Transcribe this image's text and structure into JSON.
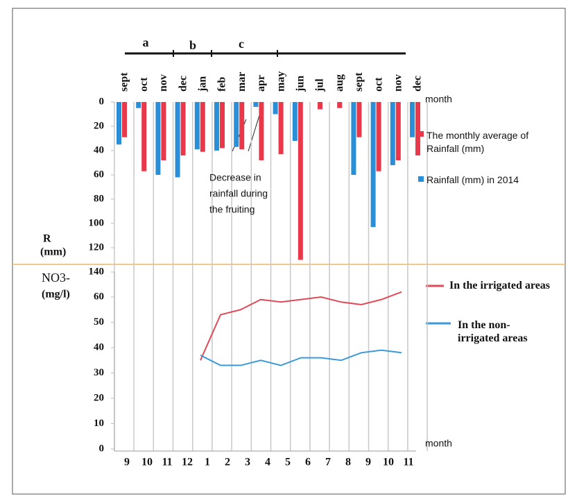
{
  "chart_data": [
    {
      "type": "bar",
      "categories": [
        "sept",
        "oct",
        "nov",
        "dec",
        "jan",
        "feb",
        "mar",
        "apr",
        "may",
        "jun",
        "jul",
        "aug",
        "sept",
        "oct",
        "nov",
        "dec"
      ],
      "series": [
        {
          "name": "The monthly average of Rainfall (mm)",
          "color": "#e8384a",
          "values": [
            29,
            57,
            48,
            44,
            41,
            38,
            39,
            48,
            43,
            130,
            6,
            5,
            29,
            57,
            48,
            44
          ]
        },
        {
          "name": "Rainfall (mm) in 2014",
          "color": "#2a8fd6",
          "values": [
            35,
            5,
            60,
            62,
            39,
            40,
            37,
            4,
            10,
            32,
            0,
            0,
            60,
            103,
            52,
            29
          ]
        }
      ],
      "ylim": [
        0,
        140
      ],
      "yticks": [
        0,
        20,
        40,
        60,
        80,
        100,
        120,
        140
      ],
      "inverted": true,
      "ylabel": [
        "R",
        "(mm)"
      ],
      "xlabel": "month",
      "annotations": [
        "a",
        "b",
        "c",
        "Decrease in",
        "rainfall during",
        "the fruiting"
      ]
    },
    {
      "type": "line",
      "categories": [
        "9",
        "10",
        "11",
        "12",
        "1",
        "2",
        "3",
        "4",
        "5",
        "6",
        "7",
        "8",
        "9",
        "10",
        "11"
      ],
      "series": [
        {
          "name": "In the irrigated areas",
          "color": "#e04a57",
          "values": [
            null,
            null,
            null,
            null,
            35,
            53,
            55,
            59,
            58,
            59,
            60,
            58,
            57,
            59,
            62
          ]
        },
        {
          "name": "In the non-irrigated areas",
          "color": "#3a9ad9",
          "values": [
            null,
            null,
            null,
            null,
            37,
            33,
            33,
            35,
            33,
            36,
            36,
            35,
            38,
            39,
            38
          ]
        }
      ],
      "ylim": [
        0,
        70
      ],
      "yticks": [
        0,
        10,
        20,
        30,
        40,
        50,
        60
      ],
      "ylabel": [
        "NO3-",
        "(mg/l)"
      ],
      "xlabel": "month"
    }
  ]
}
